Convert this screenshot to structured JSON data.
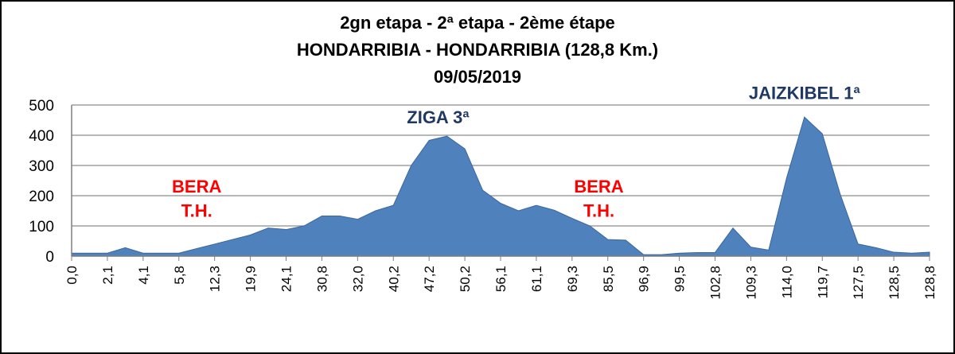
{
  "chart_data": {
    "type": "area",
    "title_lines": [
      "2gn etapa - 2ª etapa - 2ème étape",
      "HONDARRIBIA - HONDARRIBIA (128,8 Km.)",
      "09/05/2019"
    ],
    "xlabel": "",
    "ylabel": "",
    "ylim": [
      0,
      500
    ],
    "yticks": [
      0,
      100,
      200,
      300,
      400,
      500
    ],
    "grid": true,
    "x_tick_labels": [
      "0,0",
      "2,1",
      "4,1",
      "5,8",
      "12,3",
      "19,9",
      "24,1",
      "30,8",
      "32,0",
      "40,2",
      "47,2",
      "50,2",
      "56,1",
      "61,1",
      "69,3",
      "85,5",
      "96,9",
      "99,5",
      "102,8",
      "109,3",
      "114,0",
      "119,7",
      "127,5",
      "128,5",
      "128,8"
    ],
    "values": [
      10,
      10,
      10,
      28,
      10,
      10,
      10,
      25,
      40,
      55,
      70,
      93,
      88,
      100,
      133,
      133,
      122,
      150,
      168,
      300,
      383,
      397,
      355,
      218,
      175,
      150,
      168,
      152,
      125,
      100,
      55,
      53,
      5,
      5,
      10,
      12,
      12,
      93,
      30,
      20,
      258,
      460,
      405,
      205,
      40,
      28,
      13,
      10,
      13
    ],
    "fill_color": "#4F81BD",
    "annotations": [
      {
        "text": "BERA",
        "color": "#FF0000",
        "x_index": 7,
        "y": 210
      },
      {
        "text": "T.H.",
        "color": "#FF0000",
        "x_index": 7,
        "y": 130
      },
      {
        "text": "ZIGA 3ª",
        "color": "#1F3864",
        "x_index": 20.5,
        "y": 440
      },
      {
        "text": "BERA",
        "color": "#FF0000",
        "x_index": 29.5,
        "y": 210
      },
      {
        "text": "T.H.",
        "color": "#FF0000",
        "x_index": 29.5,
        "y": 130
      },
      {
        "text": "JAIZKIBEL 1ª",
        "color": "#1F3864",
        "x_index": 41,
        "y": 520
      }
    ]
  }
}
